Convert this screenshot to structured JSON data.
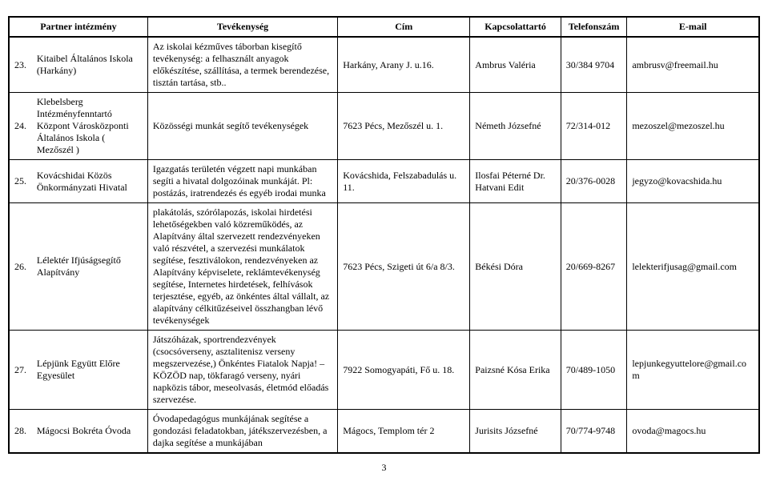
{
  "header": {
    "col1": "Partner intézmény",
    "col2": "Tevékenység",
    "col3": "Cím",
    "col4": "Kapcsolattartó",
    "col5": "Telefonszám",
    "col6": "E-mail"
  },
  "rows": [
    {
      "num": "23.",
      "institution": "Kitaibel Általános Iskola (Harkány)",
      "activity": "Az iskolai kézműves táborban kisegítő tevékenység: a felhasznált anyagok előkészítése, szállítása, a termek berendezése, tisztán tartása, stb..",
      "address": "Harkány, Arany J. u.16.",
      "contact": "Ambrus Valéria",
      "phone": "30/384 9704",
      "email": "ambrusv@freemail.hu"
    },
    {
      "num": "24.",
      "institution": "Klebelsberg Intézményfenntartó Központ Városközponti Általános Iskola ( Mezőszél )",
      "activity": "Közösségi munkát segítő tevékenységek",
      "address": "7623 Pécs, Mezőszél u. 1.",
      "contact": "Németh Józsefné",
      "phone": "72/314-012",
      "email": "mezoszel@mezoszel.hu"
    },
    {
      "num": "25.",
      "institution": "Kovácshidai Közös Önkormányzati Hivatal",
      "activity": "Igazgatás területén végzett napi munkában segíti a hivatal dolgozóinak munkáját. Pl: postázás, iratrendezés és egyéb irodai munka",
      "address": "Kovácshida, Felszabadulás u. 11.",
      "contact": "Ilosfai Péterné Dr. Hatvani Edit",
      "phone": "20/376-0028",
      "email": "jegyzo@kovacshida.hu"
    },
    {
      "num": "26.",
      "institution": "Lélektér Ifjúságsegítő Alapítvány",
      "activity": "plakátolás, szórólapozás, iskolai hirdetési lehetőségekben való közreműködés, az Alapítvány által szervezett rendezvényeken való részvétel, a szervezési munkálatok segítése, fesztiválokon, rendezvényeken az Alapítvány képviselete, reklámtevékenység segítése, Internetes hirdetések, felhívások terjesztése, egyéb, az önkéntes által vállalt, az alapítvány célkitűzéseivel összhangban lévő tevékenységek",
      "address": "7623 Pécs, Szigeti út 6/a 8/3.",
      "contact": "Békési Dóra",
      "phone": "20/669-8267",
      "email": "lelekterifjusag@gmail.com"
    },
    {
      "num": "27.",
      "institution": "Lépjünk Együtt Előre Egyesület",
      "activity": "Játszóházak, sportrendezvények (csocsóverseny, asztalitenisz verseny megszervezése,) Önkéntes Fiatalok Napja! – KÖZÖD nap, tökfaragó verseny, nyári napközis tábor, meseolvasás, életmód előadás szervezése.",
      "address": "7922 Somogyapáti, Fő u. 18.",
      "contact": "Paizsné Kósa Erika",
      "phone": "70/489-1050",
      "email": "lepjunkegyuttelore@gmail.com"
    },
    {
      "num": "28.",
      "institution": "Mágocsi Bokréta Óvoda",
      "activity": "Óvodapedagógus munkájának segítése a gondozási feladatokban, játékszervezésben, a dajka segítése a munkájában",
      "address": "Mágocs, Templom tér 2",
      "contact": "Jurisits Józsefné",
      "phone": "70/774-9748",
      "email": "ovoda@magocs.hu"
    }
  ],
  "page": "3"
}
